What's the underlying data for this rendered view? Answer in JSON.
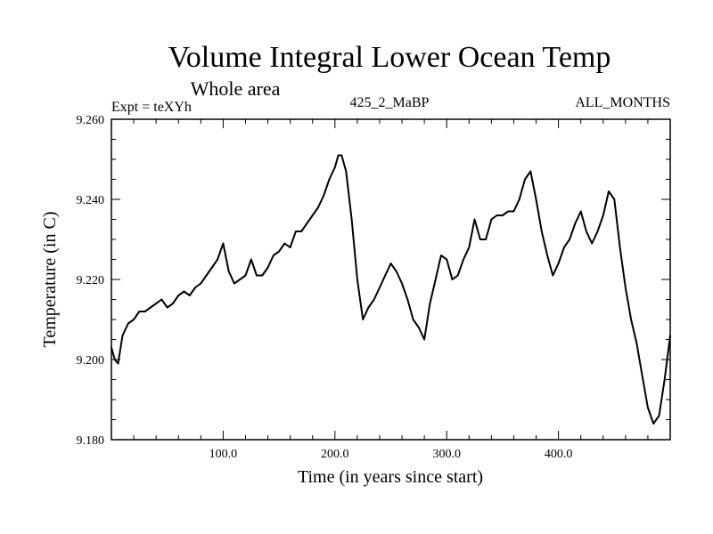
{
  "chart_data": {
    "type": "line",
    "title": "Volume Integral Lower Ocean Temp",
    "subtitle": "Whole area",
    "annotations": {
      "left": "Expt = teXYh",
      "center": "425_2_MaBP",
      "right": "ALL_MONTHS"
    },
    "xlabel": "Time (in years since start)",
    "ylabel": "Temperature (in C)",
    "xlim": [
      0,
      500
    ],
    "ylim": [
      9.18,
      9.26
    ],
    "x_ticks": [
      {
        "value": 100,
        "label": "100.0"
      },
      {
        "value": 200,
        "label": "200.0"
      },
      {
        "value": 300,
        "label": "300.0"
      },
      {
        "value": 400,
        "label": "400.0"
      }
    ],
    "y_ticks": [
      {
        "value": 9.18,
        "label": "9.180"
      },
      {
        "value": 9.2,
        "label": "9.200"
      },
      {
        "value": 9.22,
        "label": "9.220"
      },
      {
        "value": 9.24,
        "label": "9.240"
      },
      {
        "value": 9.26,
        "label": "9.260"
      }
    ],
    "grid": false,
    "line_color": "#000000",
    "series": [
      {
        "x": [
          0,
          3,
          6,
          10,
          15,
          20,
          25,
          30,
          35,
          40,
          45,
          50,
          55,
          60,
          65,
          70,
          75,
          80,
          85,
          90,
          95,
          100,
          105,
          110,
          115,
          120,
          125,
          130,
          135,
          140,
          145,
          150,
          155,
          160,
          165,
          170,
          175,
          180,
          185,
          190,
          195,
          200,
          203,
          206,
          210,
          215,
          220,
          225,
          230,
          235,
          240,
          245,
          250,
          255,
          260,
          265,
          270,
          275,
          280,
          285,
          290,
          295,
          300,
          305,
          310,
          315,
          320,
          325,
          330,
          335,
          340,
          345,
          350,
          355,
          360,
          365,
          370,
          375,
          380,
          385,
          390,
          395,
          400,
          405,
          410,
          415,
          420,
          425,
          430,
          435,
          440,
          445,
          450,
          455,
          460,
          465,
          470,
          475,
          480,
          485,
          490,
          495,
          500
        ],
        "y": [
          9.203,
          9.2,
          9.199,
          9.206,
          9.209,
          9.21,
          9.212,
          9.212,
          9.213,
          9.214,
          9.215,
          9.213,
          9.214,
          9.216,
          9.217,
          9.216,
          9.218,
          9.219,
          9.221,
          9.223,
          9.225,
          9.229,
          9.222,
          9.219,
          9.22,
          9.221,
          9.225,
          9.221,
          9.221,
          9.223,
          9.226,
          9.227,
          9.229,
          9.228,
          9.232,
          9.232,
          9.234,
          9.236,
          9.238,
          9.241,
          9.245,
          9.248,
          9.251,
          9.251,
          9.247,
          9.235,
          9.22,
          9.21,
          9.213,
          9.215,
          9.218,
          9.221,
          9.224,
          9.222,
          9.219,
          9.215,
          9.21,
          9.208,
          9.205,
          9.214,
          9.22,
          9.226,
          9.225,
          9.22,
          9.221,
          9.225,
          9.228,
          9.235,
          9.23,
          9.23,
          9.235,
          9.236,
          9.236,
          9.237,
          9.237,
          9.24,
          9.245,
          9.247,
          9.24,
          9.232,
          9.226,
          9.221,
          9.224,
          9.228,
          9.23,
          9.234,
          9.237,
          9.232,
          9.229,
          9.232,
          9.236,
          9.242,
          9.24,
          9.228,
          9.218,
          9.21,
          9.204,
          9.196,
          9.188,
          9.184,
          9.186,
          9.195,
          9.206
        ]
      }
    ]
  }
}
